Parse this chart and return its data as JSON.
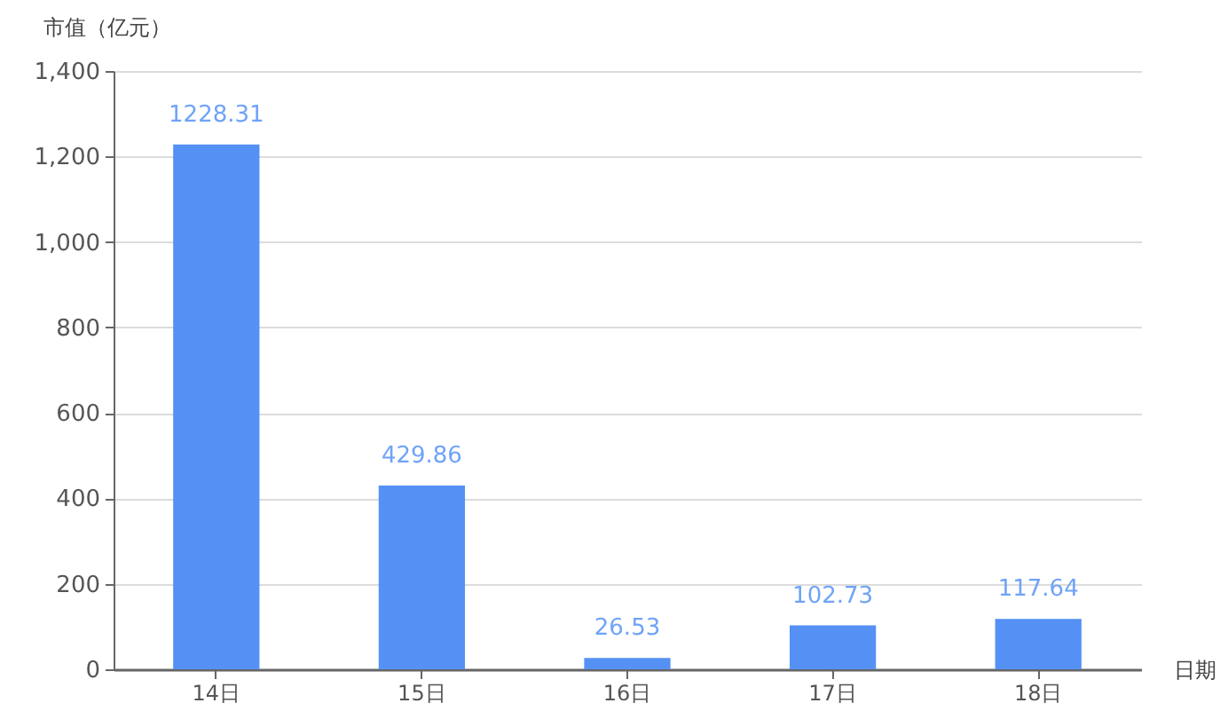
{
  "chart_data": {
    "type": "bar",
    "ylabel": "市值（亿元）",
    "xlabel": "日期",
    "categories": [
      "14日",
      "15日",
      "16日",
      "17日",
      "18日"
    ],
    "values": [
      1228.31,
      429.86,
      26.53,
      102.73,
      117.64
    ],
    "color": "#5591f4",
    "data_labels": true,
    "ylim": [
      0,
      1400
    ],
    "yticks": [
      0,
      200,
      400,
      600,
      800,
      {
        "value": 1000,
        "label": "1,000"
      },
      {
        "value": 1200,
        "label": "1,200"
      },
      {
        "value": 1400,
        "label": "1,400"
      }
    ],
    "grid": "y"
  }
}
